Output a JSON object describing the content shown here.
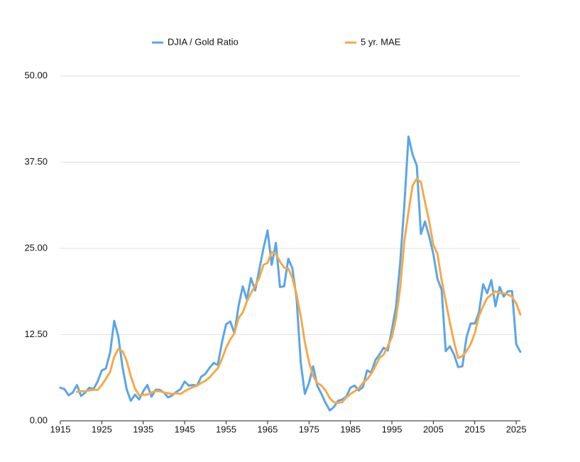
{
  "chart_data": {
    "type": "line",
    "x": [
      1915,
      1916,
      1917,
      1918,
      1919,
      1920,
      1921,
      1922,
      1923,
      1924,
      1925,
      1926,
      1927,
      1928,
      1929,
      1930,
      1931,
      1932,
      1933,
      1934,
      1935,
      1936,
      1937,
      1938,
      1939,
      1940,
      1941,
      1942,
      1943,
      1944,
      1945,
      1946,
      1947,
      1948,
      1949,
      1950,
      1951,
      1952,
      1953,
      1954,
      1955,
      1956,
      1957,
      1958,
      1959,
      1960,
      1961,
      1962,
      1963,
      1964,
      1965,
      1966,
      1967,
      1968,
      1969,
      1970,
      1971,
      1972,
      1973,
      1974,
      1975,
      1976,
      1977,
      1978,
      1979,
      1980,
      1981,
      1982,
      1983,
      1984,
      1985,
      1986,
      1987,
      1988,
      1989,
      1990,
      1991,
      1992,
      1993,
      1994,
      1995,
      1996,
      1997,
      1998,
      1999,
      2000,
      2001,
      2002,
      2003,
      2004,
      2005,
      2006,
      2007,
      2008,
      2009,
      2010,
      2011,
      2012,
      2013,
      2014,
      2015,
      2016,
      2017,
      2018,
      2019,
      2020,
      2021,
      2022,
      2023,
      2024,
      2025,
      2026
    ],
    "series": [
      {
        "name": "DJIA / Gold Ratio",
        "color": "#5aa5ea",
        "values": [
          4.8,
          4.6,
          3.7,
          4.1,
          5.2,
          3.6,
          4.1,
          4.8,
          4.6,
          5.7,
          7.3,
          7.6,
          9.9,
          14.5,
          12.2,
          7.8,
          4.6,
          2.9,
          3.8,
          3.1,
          4.3,
          5.2,
          3.5,
          4.5,
          4.5,
          4.1,
          3.4,
          3.7,
          4.2,
          4.6,
          5.7,
          5.1,
          5.2,
          5.1,
          6.4,
          6.8,
          7.7,
          8.4,
          8.1,
          11.4,
          14.0,
          14.4,
          12.7,
          16.6,
          19.5,
          17.6,
          20.7,
          18.9,
          21.9,
          25.0,
          27.6,
          22.6,
          25.8,
          19.4,
          19.5,
          23.5,
          22.1,
          17.7,
          8.5,
          3.9,
          5.5,
          7.9,
          5.1,
          3.9,
          2.6,
          1.5,
          2.0,
          2.9,
          3.1,
          3.5,
          4.8,
          5.1,
          4.4,
          4.9,
          7.3,
          7.0,
          8.8,
          9.6,
          10.6,
          10.2,
          13.2,
          16.6,
          22.9,
          31.2,
          41.2,
          38.6,
          37.0,
          27.1,
          28.9,
          26.7,
          24.2,
          20.6,
          19.0,
          10.1,
          10.8,
          9.6,
          7.8,
          7.9,
          12.1,
          14.1,
          14.1,
          15.7,
          19.8,
          18.5,
          20.4,
          16.6,
          19.4,
          18.0,
          18.8,
          18.8,
          11.1,
          10.0
        ]
      },
      {
        "name": "5 yr. MAE",
        "color": "#f6a945",
        "values": [
          null,
          null,
          null,
          null,
          4.2,
          4.3,
          4.3,
          4.4,
          4.5,
          4.5,
          5.2,
          6.1,
          7.1,
          9.3,
          10.4,
          10.1,
          8.7,
          6.5,
          4.7,
          3.7,
          3.8,
          3.8,
          4.1,
          4.3,
          4.3,
          4.1,
          4.0,
          3.9,
          4.0,
          3.9,
          4.3,
          4.6,
          4.9,
          5.1,
          5.5,
          5.8,
          6.3,
          7.0,
          7.6,
          9.0,
          10.6,
          11.8,
          12.7,
          14.9,
          15.7,
          17.3,
          18.5,
          19.6,
          20.7,
          22.6,
          22.9,
          24.5,
          24.2,
          23.1,
          22.2,
          22.1,
          20.7,
          18.3,
          15.2,
          11.4,
          8.5,
          6.5,
          5.5,
          5.1,
          4.4,
          3.3,
          2.7,
          2.6,
          2.7,
          3.4,
          3.9,
          4.3,
          4.7,
          5.5,
          6.0,
          6.8,
          7.9,
          9.1,
          9.6,
          10.8,
          12.1,
          14.9,
          19.3,
          26.0,
          30.3,
          34.1,
          35.1,
          34.6,
          31.7,
          28.9,
          25.5,
          24.2,
          20.4,
          17.3,
          14.2,
          11.4,
          9.1,
          9.4,
          10.1,
          11.1,
          12.7,
          15.2,
          16.6,
          17.8,
          18.3,
          18.8,
          18.5,
          18.5,
          18.3,
          18.0,
          17.0,
          15.4
        ]
      }
    ],
    "xlim": [
      1915,
      2026
    ],
    "xticks": [
      1915,
      1925,
      1935,
      1945,
      1955,
      1965,
      1975,
      1985,
      1995,
      2005,
      2015,
      2025
    ],
    "ylim": [
      0,
      50
    ],
    "yticks": [
      {
        "value": 0,
        "label": "0.00"
      },
      {
        "value": 12.5,
        "label": "12.50"
      },
      {
        "value": 25,
        "label": "25.00"
      },
      {
        "value": 37.5,
        "label": "37.50"
      },
      {
        "value": 50,
        "label": "50.00"
      }
    ],
    "grid": true,
    "legend": "top"
  }
}
